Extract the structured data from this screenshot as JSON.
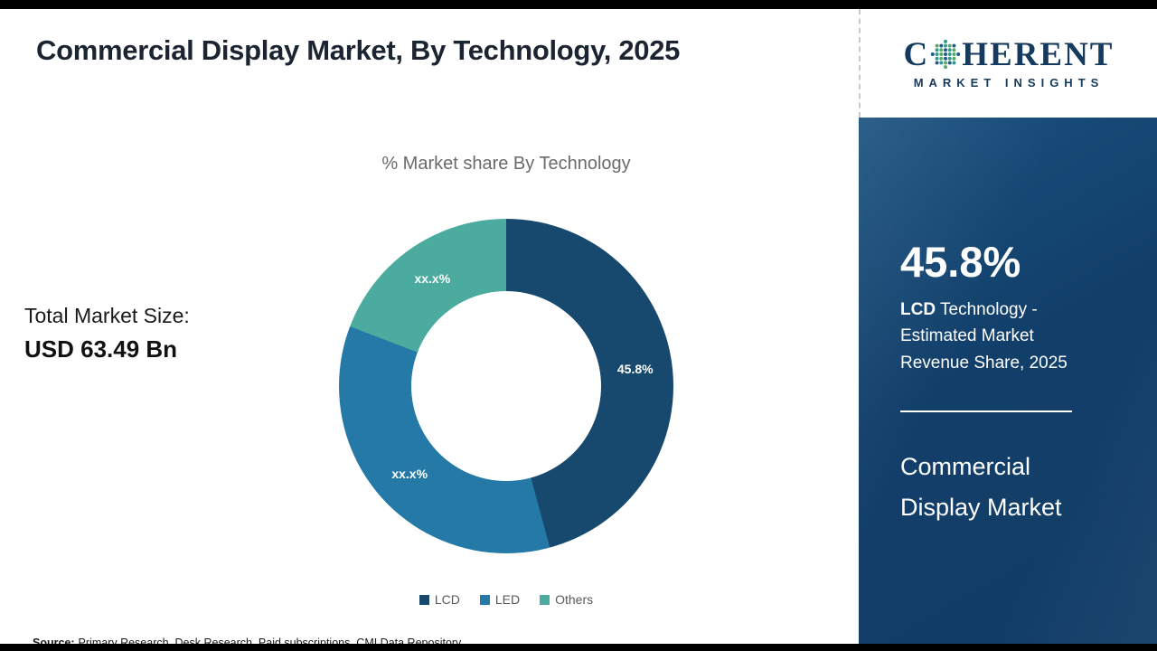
{
  "header": {
    "title": "Commercial Display Market, By Technology, 2025"
  },
  "logo": {
    "prefix": "C",
    "suffix": "HERENT",
    "subtitle": "MARKET INSIGHTS",
    "color": "#163a5e"
  },
  "main": {
    "total_label": "Total Market Size:",
    "total_value": "USD 63.49 Bn"
  },
  "sidebar": {
    "stat_value": "45.8%",
    "stat_bold": "LCD",
    "stat_rest": " Technology - Estimated Market Revenue Share, 2025",
    "market_name": "Commercial Display Market",
    "background": "#123f6a"
  },
  "footer": {
    "source_label": "Source:",
    "source_text": "Primary Research, Desk Research, Paid subscriptions, CMI Data Repository"
  },
  "chart_data": {
    "type": "pie",
    "donut": true,
    "title": "% Market share By Technology",
    "legend_position": "bottom",
    "segments": [
      {
        "label": "LCD",
        "value": 45.8,
        "display": "45.8%",
        "color": "#17496f",
        "estimated": false
      },
      {
        "label": "LED",
        "value": 35.0,
        "display": "xx.x%",
        "color": "#2479a7",
        "estimated": true
      },
      {
        "label": "Others",
        "value": 19.2,
        "display": "xx.x%",
        "color": "#4bab9e",
        "estimated": true
      }
    ]
  }
}
